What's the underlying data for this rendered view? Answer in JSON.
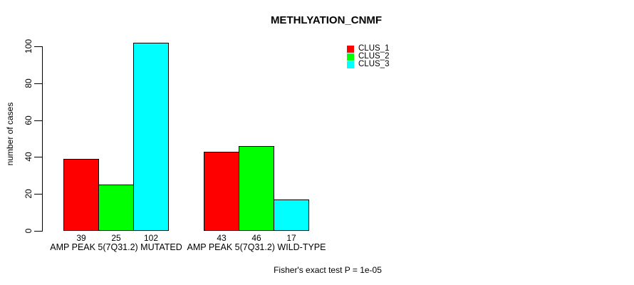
{
  "chart_data": {
    "type": "bar",
    "title": "METHLYATION_CNMF",
    "xlabel": "",
    "ylabel": "number of cases",
    "ylim": [
      0,
      102
    ],
    "yticks": [
      0,
      20,
      40,
      60,
      80,
      100
    ],
    "grid": false,
    "legend_position": "inside-top-right",
    "categories": [
      "AMP PEAK 5(7Q31.2) MUTATED",
      "AMP PEAK 5(7Q31.2) WILD-TYPE"
    ],
    "series": [
      {
        "name": "CLUS_1",
        "color": "#ff0000",
        "values": [
          39,
          43
        ]
      },
      {
        "name": "CLUS_2",
        "color": "#00ff00",
        "values": [
          25,
          46
        ]
      },
      {
        "name": "CLUS_3",
        "color": "#00ffff",
        "values": [
          102,
          17
        ]
      }
    ],
    "bar_value_labels": [
      [
        39,
        25,
        102
      ],
      [
        43,
        46,
        17
      ]
    ],
    "annotation": "Fisher's exact test P = 1e-05"
  },
  "colors": {
    "background": "#ffffff",
    "axis": "#000000",
    "text": "#000000",
    "clus_1": "#ff0000",
    "clus_2": "#00ff00",
    "clus_3": "#00ffff"
  }
}
